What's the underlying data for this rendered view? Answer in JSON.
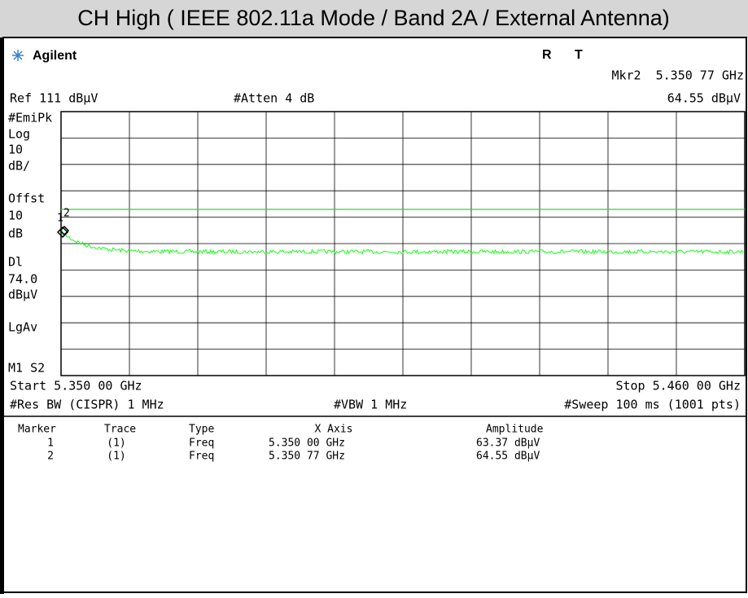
{
  "title": "CH High ( IEEE 802.11a Mode / Band 2A / External Antenna)",
  "header": {
    "brand": "Agilent",
    "status": [
      "R",
      "T"
    ],
    "marker_readout": "Mkr2  5.350 77 GHz",
    "ref": "Ref 111 dBµV",
    "atten": "#Atten 4 dB",
    "marker_amplitude": "64.55 dBµV"
  },
  "left_labels": [
    "#EmiPk",
    "Log",
    "10",
    "dB/",
    "Offst",
    "10",
    "dB",
    "Dl",
    "74.0",
    "dBµV",
    "LgAv",
    "M1  S2"
  ],
  "marker_flags": [
    "1",
    "2"
  ],
  "footer": {
    "start": "Start 5.350 00 GHz",
    "stop": "Stop 5.460 00 GHz",
    "res_bw": "#Res BW (CISPR) 1 MHz",
    "vbw": "#VBW 1 MHz",
    "sweep": "#Sweep 100 ms (1001 pts)"
  },
  "marker_table": {
    "columns": [
      "Marker",
      "Trace",
      "Type",
      "X Axis",
      "Amplitude"
    ],
    "rows": [
      [
        "1",
        "(1)",
        "Freq",
        "5.350 00 GHz",
        "63.37 dBµV"
      ],
      [
        "2",
        "(1)",
        "Freq",
        "5.350 77 GHz",
        "64.55 dBµV"
      ]
    ]
  }
}
